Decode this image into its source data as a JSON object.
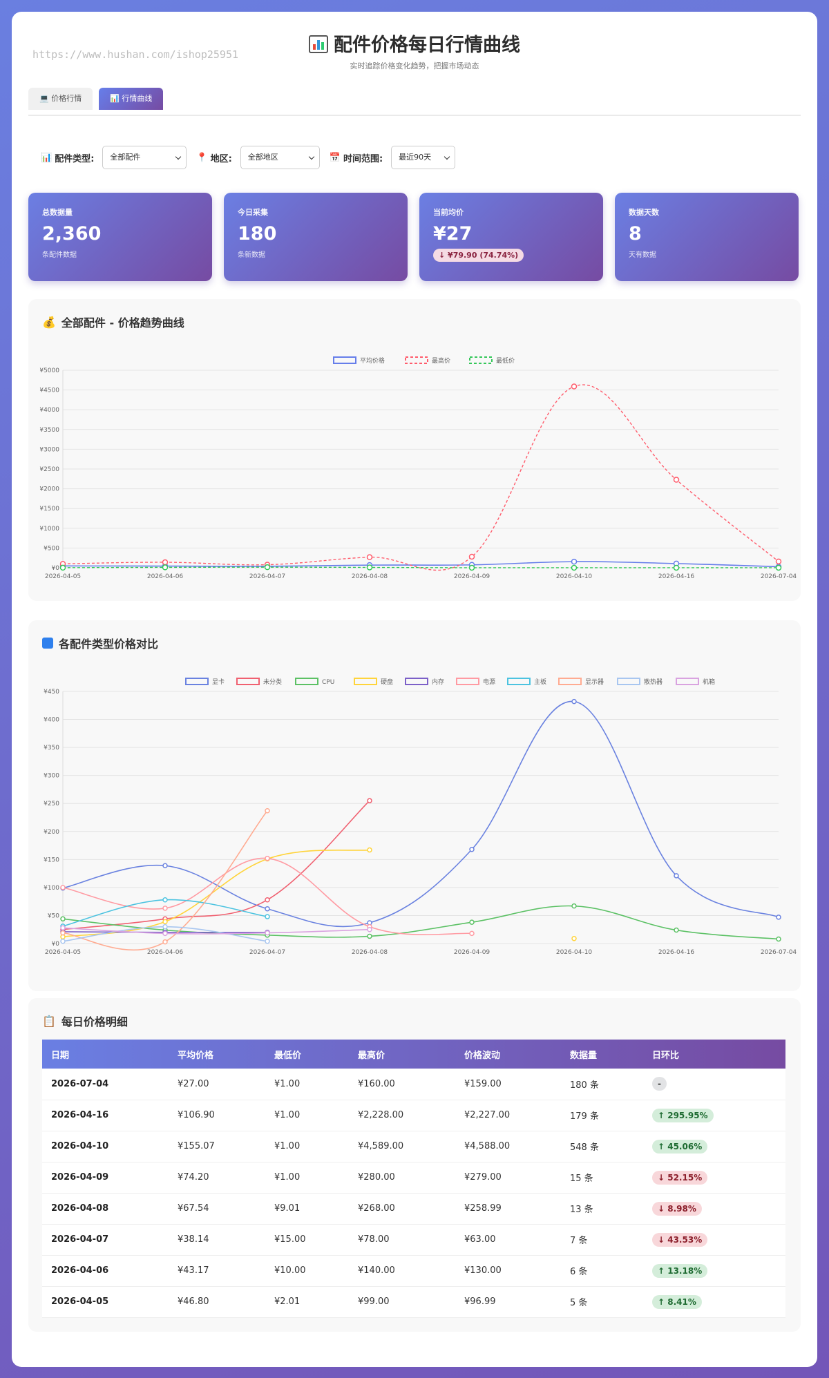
{
  "watermark": "https://www.hushan.com/ishop25951",
  "header": {
    "title": "配件价格每日行情曲线",
    "subtitle": "实时追踪价格变化趋势，把握市场动态"
  },
  "tabs": [
    {
      "label": "价格行情",
      "icon": "laptop-icon"
    },
    {
      "label": "行情曲线",
      "icon": "chart-icon",
      "active": true
    }
  ],
  "filters": [
    {
      "label": "配件类型:",
      "value": "全部配件",
      "icon": "chart-icon"
    },
    {
      "label": "地区:",
      "value": "全部地区",
      "icon": "pin-icon"
    },
    {
      "label": "时间范围:",
      "value": "最近90天",
      "icon": "calendar-icon"
    }
  ],
  "stats": [
    {
      "label": "总数据量",
      "value": "2,360",
      "sub": "条配件数据"
    },
    {
      "label": "今日采集",
      "value": "180",
      "sub": "条新数据"
    },
    {
      "label": "当前均价",
      "value": "¥27",
      "badge": "↓ ¥79.90 (74.74%)"
    },
    {
      "label": "数据天数",
      "value": "8",
      "sub": "天有数据"
    }
  ],
  "colors": {
    "accent": "#667eea",
    "accent2": "#764ba2",
    "up": "#1e6b31",
    "down": "#8b1e2a"
  },
  "chart_data": [
    {
      "title": "全部配件 - 价格趋势曲线",
      "type": "line",
      "categories": [
        "2026-04-05",
        "2026-04-06",
        "2026-04-07",
        "2026-04-08",
        "2026-04-09",
        "2026-04-10",
        "2026-04-16",
        "2026-07-04"
      ],
      "ylim": [
        0,
        5000
      ],
      "yticks": [
        "¥0",
        "¥500",
        "¥1000",
        "¥1500",
        "¥2000",
        "¥2500",
        "¥3000",
        "¥3500",
        "¥4000",
        "¥4500",
        "¥5000"
      ],
      "legend_position": "top-center",
      "grid": true,
      "series": [
        {
          "name": "平均价格",
          "values": [
            46.8,
            43.17,
            38.14,
            67.54,
            74.2,
            155.07,
            106.9,
            27.0
          ],
          "color": "#667eea",
          "dashed": false
        },
        {
          "name": "最高价",
          "values": [
            99,
            140,
            78,
            268,
            280,
            4589,
            2228,
            160
          ],
          "color": "#ff5c6c",
          "dashed": true
        },
        {
          "name": "最低价",
          "values": [
            2.01,
            10,
            15,
            9.01,
            1,
            1,
            1,
            1
          ],
          "color": "#34c759",
          "dashed": true
        }
      ]
    },
    {
      "title": "各配件类型价格对比",
      "type": "line",
      "categories": [
        "2026-04-05",
        "2026-04-06",
        "2026-04-07",
        "2026-04-08",
        "2026-04-09",
        "2026-04-10",
        "2026-04-16",
        "2026-07-04"
      ],
      "ylim": [
        0,
        450
      ],
      "yticks": [
        "¥0",
        "¥50",
        "¥100",
        "¥150",
        "¥200",
        "¥250",
        "¥300",
        "¥350",
        "¥400",
        "¥450"
      ],
      "legend_position": "top-center",
      "grid": true,
      "series": [
        {
          "name": "显卡",
          "values": [
            99,
            139,
            62,
            37,
            168,
            432,
            121,
            47
          ],
          "color": "#6a82e0"
        },
        {
          "name": "未分类",
          "values": [
            25,
            44,
            78,
            255,
            null,
            null,
            null,
            null
          ],
          "color": "#f06070"
        },
        {
          "name": "CPU",
          "values": [
            44,
            24,
            15,
            13,
            38,
            67,
            24,
            8
          ],
          "color": "#5cc165"
        },
        {
          "name": "硬盘",
          "values": [
            12,
            39,
            151,
            167,
            null,
            9,
            null,
            null
          ],
          "color": "#ffd43b"
        },
        {
          "name": "内存",
          "values": [
            21,
            20,
            20,
            null,
            null,
            null,
            null,
            null
          ],
          "color": "#7c60c8"
        },
        {
          "name": "电源",
          "values": [
            100,
            63,
            152,
            30,
            18,
            null,
            null,
            null
          ],
          "color": "#ff9aa2"
        },
        {
          "name": "主板",
          "values": [
            31,
            78,
            48,
            null,
            null,
            null,
            null,
            null
          ],
          "color": "#4cc3e0"
        },
        {
          "name": "显示器",
          "values": [
            19,
            3,
            237,
            null,
            null,
            null,
            null,
            null
          ],
          "color": "#ffab91"
        },
        {
          "name": "散热器",
          "values": [
            4,
            30,
            4,
            null,
            null,
            null,
            null,
            null
          ],
          "color": "#a8c6f0"
        },
        {
          "name": "机箱",
          "values": [
            28,
            18,
            19,
            25,
            null,
            null,
            null,
            null
          ],
          "color": "#d9a3e0"
        }
      ]
    }
  ],
  "table": {
    "title": "每日价格明细",
    "headers": [
      "日期",
      "平均价格",
      "最低价",
      "最高价",
      "价格波动",
      "数据量",
      "日环比"
    ],
    "rows": [
      {
        "date": "2026-07-04",
        "avg": "¥27.00",
        "min": "¥1.00",
        "max": "¥160.00",
        "range": "¥159.00",
        "count": "180 条",
        "change": "-",
        "trend": "neutral"
      },
      {
        "date": "2026-04-16",
        "avg": "¥106.90",
        "min": "¥1.00",
        "max": "¥2,228.00",
        "range": "¥2,227.00",
        "count": "179 条",
        "change": "↑ 295.95%",
        "trend": "up"
      },
      {
        "date": "2026-04-10",
        "avg": "¥155.07",
        "min": "¥1.00",
        "max": "¥4,589.00",
        "range": "¥4,588.00",
        "count": "548 条",
        "change": "↑ 45.06%",
        "trend": "up"
      },
      {
        "date": "2026-04-09",
        "avg": "¥74.20",
        "min": "¥1.00",
        "max": "¥280.00",
        "range": "¥279.00",
        "count": "15 条",
        "change": "↓ 52.15%",
        "trend": "down"
      },
      {
        "date": "2026-04-08",
        "avg": "¥67.54",
        "min": "¥9.01",
        "max": "¥268.00",
        "range": "¥258.99",
        "count": "13 条",
        "change": "↓ 8.98%",
        "trend": "down"
      },
      {
        "date": "2026-04-07",
        "avg": "¥38.14",
        "min": "¥15.00",
        "max": "¥78.00",
        "range": "¥63.00",
        "count": "7 条",
        "change": "↓ 43.53%",
        "trend": "down"
      },
      {
        "date": "2026-04-06",
        "avg": "¥43.17",
        "min": "¥10.00",
        "max": "¥140.00",
        "range": "¥130.00",
        "count": "6 条",
        "change": "↑ 13.18%",
        "trend": "up"
      },
      {
        "date": "2026-04-05",
        "avg": "¥46.80",
        "min": "¥2.01",
        "max": "¥99.00",
        "range": "¥96.99",
        "count": "5 条",
        "change": "↑ 8.41%",
        "trend": "up"
      }
    ]
  }
}
